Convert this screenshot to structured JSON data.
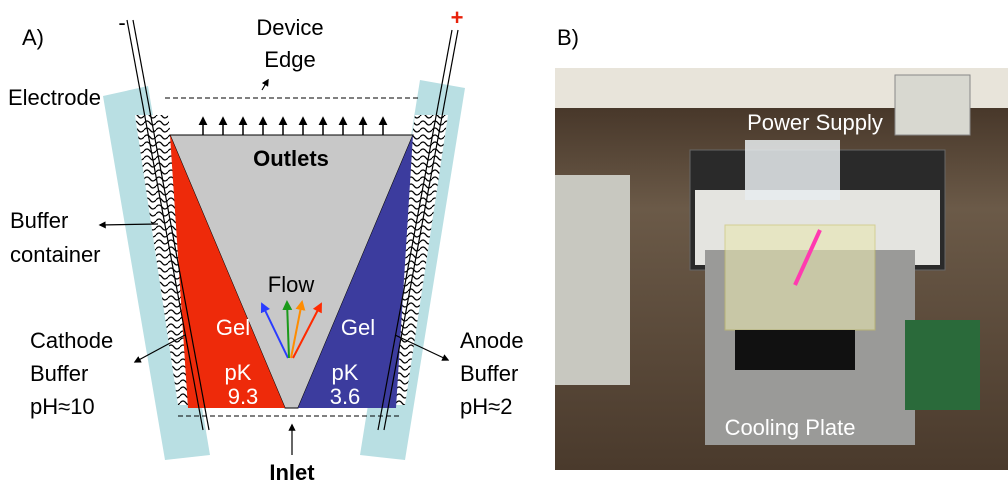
{
  "panel_a": {
    "label": "A)",
    "cathode_sign": "-",
    "anode_sign": "+",
    "device_edge": [
      "Device",
      "Edge"
    ],
    "electrode": "Electrode",
    "outlets": "Outlets",
    "buffer_container": [
      "Buffer",
      "container"
    ],
    "flow": "Flow",
    "left_gel": {
      "gel": "Gel",
      "pk": "pK",
      "value": "9.3"
    },
    "right_gel": {
      "gel": "Gel",
      "pk": "pK",
      "value": "3.6"
    },
    "cathode_buffer": [
      "Cathode",
      "Buffer",
      "pH≈10"
    ],
    "anode_buffer": [
      "Anode",
      "Buffer",
      "pH≈2"
    ],
    "inlet": "Inlet"
  },
  "panel_b": {
    "label": "B)",
    "power_supply": "Power Supply",
    "cooling_plate": "Cooling Plate"
  }
}
